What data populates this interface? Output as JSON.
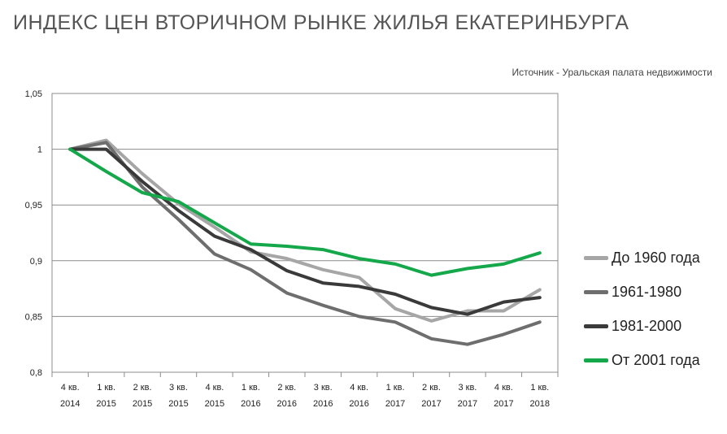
{
  "title": "ИНДЕКС ЦЕН ВТОРИЧНОМ РЫНКЕ ЖИЛЬЯ ЕКАТЕРИНБУРГА",
  "source": "Источник - Уральская палата недвижимости",
  "chart_data": {
    "type": "line",
    "title": "ИНДЕКС ЦЕН ВТОРИЧНОМ РЫНКЕ ЖИЛЬЯ ЕКАТЕРИНБУРГА",
    "xlabel": "",
    "ylabel": "",
    "ylim": [
      0.8,
      1.05
    ],
    "yticks": [
      1.05,
      1.0,
      0.95,
      0.9,
      0.85,
      0.8
    ],
    "ytick_labels": [
      "1,05",
      "1",
      "0,95",
      "0,9",
      "0,85",
      "0,8"
    ],
    "grid": "horizontal",
    "legend_position": "right",
    "categories": [
      [
        "4 кв.",
        "2014"
      ],
      [
        "1 кв.",
        "2015"
      ],
      [
        "2 кв.",
        "2015"
      ],
      [
        "3 кв.",
        "2015"
      ],
      [
        "4 кв.",
        "2015"
      ],
      [
        "1 кв.",
        "2016"
      ],
      [
        "2 кв.",
        "2016"
      ],
      [
        "3 кв.",
        "2016"
      ],
      [
        "4 кв.",
        "2016"
      ],
      [
        "1 кв.",
        "2017"
      ],
      [
        "2 кв.",
        "2017"
      ],
      [
        "3 кв.",
        "2017"
      ],
      [
        "4 кв.",
        "2017"
      ],
      [
        "1 кв.",
        "2018"
      ]
    ],
    "series": [
      {
        "name": "До 1960 года",
        "color": "#a6a6a6",
        "values": [
          1.0,
          1.008,
          0.978,
          0.951,
          0.93,
          0.908,
          0.902,
          0.892,
          0.885,
          0.857,
          0.846,
          0.855,
          0.855,
          0.874
        ]
      },
      {
        "name": "1961-1980",
        "color": "#6e6e6e",
        "values": [
          1.0,
          1.006,
          0.966,
          0.937,
          0.906,
          0.892,
          0.871,
          0.86,
          0.85,
          0.845,
          0.83,
          0.825,
          0.834,
          0.845
        ]
      },
      {
        "name": "1981-2000",
        "color": "#3a3a3a",
        "values": [
          1.0,
          1.0,
          0.971,
          0.945,
          0.922,
          0.91,
          0.891,
          0.88,
          0.877,
          0.87,
          0.858,
          0.852,
          0.863,
          0.867
        ]
      },
      {
        "name": "От 2001 года",
        "color": "#14a84a",
        "values": [
          1.0,
          0.98,
          0.961,
          0.953,
          0.934,
          0.915,
          0.913,
          0.91,
          0.902,
          0.897,
          0.887,
          0.893,
          0.897,
          0.907
        ]
      }
    ]
  }
}
